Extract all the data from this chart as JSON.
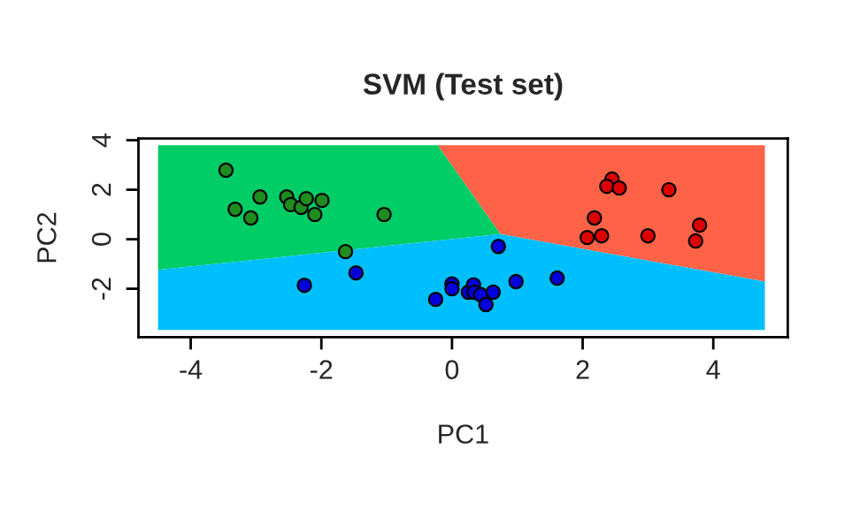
{
  "chart_data": {
    "type": "scatter",
    "title": "SVM (Test set)",
    "xlabel": "PC1",
    "ylabel": "PC2",
    "xlim": [
      -4.8,
      5.14
    ],
    "ylim": [
      -3.96,
      4.07
    ],
    "xticks": [
      -4,
      -2,
      0,
      2,
      4
    ],
    "yticks": [
      -2,
      0,
      2,
      4
    ],
    "grid": false,
    "legend": false,
    "series": [
      {
        "type": "area",
        "color": "#ff6347",
        "x": [
          -0.22,
          4.79,
          4.79,
          0.74
        ],
        "values": [
          3.8,
          3.8,
          -1.71,
          0.21
        ]
      },
      {
        "type": "area",
        "color": "#00cd66",
        "x": [
          -4.5,
          -0.22,
          0.74,
          -4.5
        ],
        "values": [
          3.8,
          3.8,
          0.21,
          -1.24
        ]
      },
      {
        "type": "area",
        "color": "#00bfff",
        "x": [
          -4.5,
          -4.5,
          0.74,
          4.79,
          4.79
        ],
        "values": [
          -3.67,
          -1.24,
          0.21,
          -1.71,
          -3.67
        ]
      },
      {
        "marker": "circle",
        "color": "#1e8c1e",
        "x": [
          -3.46,
          -3.32,
          -3.08,
          -2.94,
          -2.53,
          -2.47,
          -2.31,
          -2.23,
          -2.1,
          -1.99,
          -1.04,
          -1.63
        ],
        "values": [
          2.79,
          1.21,
          0.86,
          1.71,
          1.71,
          1.4,
          1.29,
          1.64,
          1.0,
          1.57,
          1.0,
          -0.5
        ]
      },
      {
        "marker": "circle",
        "color": "#0000dd",
        "x": [
          -2.26,
          -1.47,
          -0.25,
          0.0,
          0.0,
          0.25,
          0.33,
          0.34,
          0.44,
          0.52,
          0.63,
          0.71,
          0.98,
          1.61
        ],
        "values": [
          -1.86,
          -1.36,
          -2.43,
          -1.81,
          -2.0,
          -2.14,
          -1.84,
          -2.14,
          -2.24,
          -2.64,
          -2.14,
          -0.29,
          -1.71,
          -1.57
        ]
      },
      {
        "marker": "circle",
        "color": "#dd0000",
        "x": [
          2.45,
          2.37,
          2.56,
          3.32,
          2.18,
          2.07,
          2.29,
          3.0,
          3.79,
          3.73
        ],
        "values": [
          2.43,
          2.14,
          2.07,
          2.0,
          0.86,
          0.07,
          0.14,
          0.14,
          0.57,
          -0.07
        ]
      }
    ]
  }
}
